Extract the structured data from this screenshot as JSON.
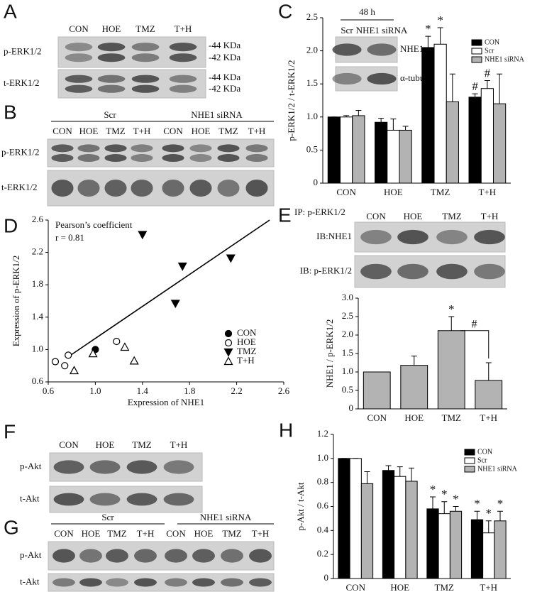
{
  "chart_data": [
    {
      "panel": "C",
      "type": "bar",
      "ylabel": "p-ERK1/2 / t-ERK1/2",
      "categories": [
        "CON",
        "HOE",
        "TMZ",
        "T+H"
      ],
      "series": [
        {
          "name": "CON",
          "color": "#000000",
          "values": [
            1.0,
            0.92,
            2.05,
            1.3
          ],
          "errors": [
            0,
            0.06,
            0.17,
            0.05
          ],
          "annotations": [
            null,
            null,
            "*",
            "#"
          ]
        },
        {
          "name": "Scr",
          "color": "#ffffff",
          "values": [
            1.0,
            0.8,
            2.1,
            1.43
          ],
          "errors": [
            0.02,
            0.17,
            0.25,
            0.12
          ],
          "annotations": [
            null,
            null,
            "*",
            "#"
          ]
        },
        {
          "name": "NHE1 siRNA",
          "color": "#b3b3b3",
          "values": [
            1.02,
            0.8,
            1.23,
            1.2
          ],
          "errors": [
            0.08,
            0.06,
            0.42,
            0.45
          ],
          "annotations": [
            null,
            null,
            null,
            null
          ]
        }
      ],
      "ylim": [
        0,
        2.5
      ],
      "yticks": [
        0,
        0.5,
        {
          "value": 1,
          "label": "1.0"
        },
        1.5,
        {
          "value": 2,
          "label": "2.0"
        },
        2.5
      ]
    },
    {
      "panel": "D",
      "type": "scatter",
      "xlabel": "Expression of NHE1",
      "ylabel": "Expression of p-ERK1/2",
      "series": [
        {
          "name": "CON",
          "marker": "circle",
          "filled": true,
          "x": [
            1.0
          ],
          "y": [
            1.0
          ]
        },
        {
          "name": "HOE",
          "marker": "circle",
          "filled": false,
          "x": [
            0.66,
            0.74,
            0.77,
            1.18
          ],
          "y": [
            0.85,
            0.8,
            0.93,
            1.1
          ]
        },
        {
          "name": "TMZ",
          "marker": "triangle-down",
          "filled": true,
          "x": [
            1.4,
            1.74,
            1.68,
            2.15
          ],
          "y": [
            2.42,
            2.03,
            1.57,
            2.13
          ]
        },
        {
          "name": "T+H",
          "marker": "triangle-up",
          "filled": false,
          "x": [
            0.82,
            0.98,
            1.25,
            1.33
          ],
          "y": [
            0.74,
            0.95,
            1.03,
            0.86
          ]
        }
      ],
      "fit_line": {
        "x": [
          0.79,
          2.48
        ],
        "y": [
          0.93,
          2.6
        ]
      },
      "annotations": [
        "Pearson’s coefficient",
        "r = 0.81"
      ],
      "xlim": [
        0.6,
        2.6
      ],
      "xticks": [
        0.6,
        {
          "value": 1,
          "label": "1.0"
        },
        1.4,
        1.8,
        2.2,
        2.6
      ],
      "ylim": [
        0.6,
        2.6
      ],
      "yticks": [
        0.6,
        {
          "value": 1,
          "label": "1.0"
        },
        1.4,
        1.8,
        2.2,
        2.6
      ]
    },
    {
      "panel": "E",
      "type": "bar",
      "ylabel": "NHE1 / p-ERK1/2",
      "categories": [
        "CON",
        "HOE",
        "TMZ",
        "T+H"
      ],
      "series": [
        {
          "color": "#b3b3b3",
          "values": [
            1.0,
            1.18,
            2.12,
            0.77
          ],
          "errors": [
            0,
            0.25,
            0.38,
            0.48
          ],
          "annotations": [
            null,
            null,
            "*",
            null
          ]
        }
      ],
      "bracket_label": "#",
      "ylim": [
        0,
        3
      ],
      "yticks": [
        0,
        0.5,
        {
          "value": 1,
          "label": "1.0"
        },
        1.5,
        {
          "value": 2,
          "label": "2.0"
        },
        2.5,
        {
          "value": 3,
          "label": "3.0"
        }
      ]
    },
    {
      "panel": "H",
      "type": "bar",
      "ylabel": "p-Akt / t-Akt",
      "categories": [
        "CON",
        "HOE",
        "TMZ",
        "T+H"
      ],
      "series": [
        {
          "name": "CON",
          "color": "#000000",
          "values": [
            1.0,
            0.9,
            0.58,
            0.49
          ],
          "errors": [
            0,
            0.04,
            0.1,
            0.07
          ],
          "annotations": [
            null,
            null,
            "*",
            "*"
          ]
        },
        {
          "name": "Scr",
          "color": "#ffffff",
          "values": [
            1.0,
            0.85,
            0.54,
            0.38
          ],
          "errors": [
            0,
            0.08,
            0.1,
            0.1
          ],
          "annotations": [
            null,
            null,
            "*",
            "*"
          ]
        },
        {
          "name": "NHE1 siRNA",
          "color": "#b3b3b3",
          "values": [
            0.79,
            0.81,
            0.56,
            0.48
          ],
          "errors": [
            0.1,
            0.11,
            0.04,
            0.08
          ],
          "annotations": [
            null,
            null,
            "*",
            "*"
          ]
        }
      ],
      "ylim": [
        0,
        1.2
      ],
      "yticks": [
        0,
        0.2,
        0.4,
        0.6,
        0.8,
        {
          "value": 1,
          "label": "1.0"
        },
        1.2
      ]
    }
  ],
  "blots": [
    {
      "panel": "A",
      "lanes": [
        "CON",
        "HOE",
        "TMZ",
        "T+H"
      ],
      "rows": [
        {
          "label": "p-ERK1/2",
          "markers": [
            "-44 KDa",
            "-42 KDa"
          ]
        },
        {
          "label": "t-ERK1/2",
          "markers": [
            "-44 KDa",
            "-42 KDa"
          ]
        }
      ]
    },
    {
      "panel": "B",
      "groups": [
        "Scr",
        "NHE1 siRNA"
      ],
      "lanes": [
        "CON",
        "HOE",
        "TMZ",
        "T+H",
        "CON",
        "HOE",
        "TMZ",
        "T+H"
      ],
      "rows": [
        {
          "label": "p-ERK1/2"
        },
        {
          "label": "t-ERK1/2"
        }
      ]
    },
    {
      "time": "48 h",
      "lanes": [
        "Scr",
        "NHE1 siRNA"
      ],
      "rows": [
        {
          "label": "NHE1"
        },
        {
          "label": "α-tubulin"
        }
      ]
    },
    {
      "ip": "IP: p-ERK1/2",
      "lanes": [
        "CON",
        "HOE",
        "TMZ",
        "T+H"
      ],
      "rows": [
        {
          "label": "IB:NHE1"
        },
        {
          "label": "IB: p-ERK1/2"
        }
      ]
    },
    {
      "panel": "F",
      "lanes": [
        "CON",
        "HOE",
        "TMZ",
        "T+H"
      ],
      "rows": [
        {
          "label": "p-Akt"
        },
        {
          "label": "t-Akt"
        }
      ]
    },
    {
      "panel": "G",
      "groups": [
        "Scr",
        "NHE1 siRNA"
      ],
      "lanes": [
        "CON",
        "HOE",
        "TMZ",
        "T+H",
        "CON",
        "HOE",
        "TMZ",
        "T+H"
      ],
      "rows": [
        {
          "label": "p-Akt"
        },
        {
          "label": "t-Akt"
        }
      ]
    }
  ]
}
